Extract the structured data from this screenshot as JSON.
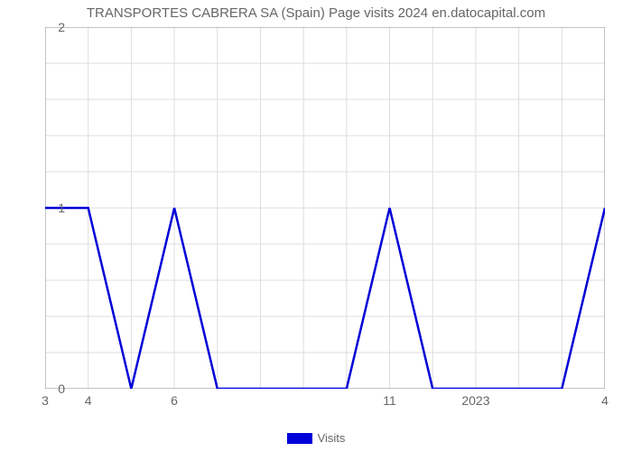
{
  "chart": {
    "type": "line",
    "title": "TRANSPORTES CABRERA SA (Spain) Page visits 2024 en.datocapital.com",
    "title_fontsize": 15,
    "title_color": "#666666",
    "background_color": "#ffffff",
    "plot_background": "#ffffff",
    "grid_color": "#dddddd",
    "grid_width": 1,
    "border_color": "#888888",
    "border_width": 1,
    "tick_color": "#888888",
    "tick_length": 5,
    "y_axis": {
      "min": 0,
      "max": 2,
      "major_ticks": [
        0,
        1,
        2
      ],
      "minor_ticks_per_major": 5,
      "label_fontsize": 14,
      "label_color": "#666666"
    },
    "x_axis": {
      "categories_count": 14,
      "visible_labels": [
        {
          "index": 0,
          "text": "3"
        },
        {
          "index": 1,
          "text": "4"
        },
        {
          "index": 3,
          "text": "6"
        },
        {
          "index": 8,
          "text": "11"
        },
        {
          "index": 10,
          "text": "2023"
        },
        {
          "index": 13,
          "text": "4"
        }
      ],
      "label_fontsize": 14,
      "label_color": "#666666"
    },
    "series": {
      "name": "Visits",
      "color": "#0000d8",
      "line_width": 2.5,
      "values": [
        1,
        1,
        0,
        1,
        0,
        0,
        0,
        0,
        1,
        0,
        0,
        0,
        0,
        1
      ]
    },
    "legend": {
      "label": "Visits",
      "swatch_color": "#0000d8",
      "text_color": "#666666",
      "fontsize": 13
    }
  }
}
